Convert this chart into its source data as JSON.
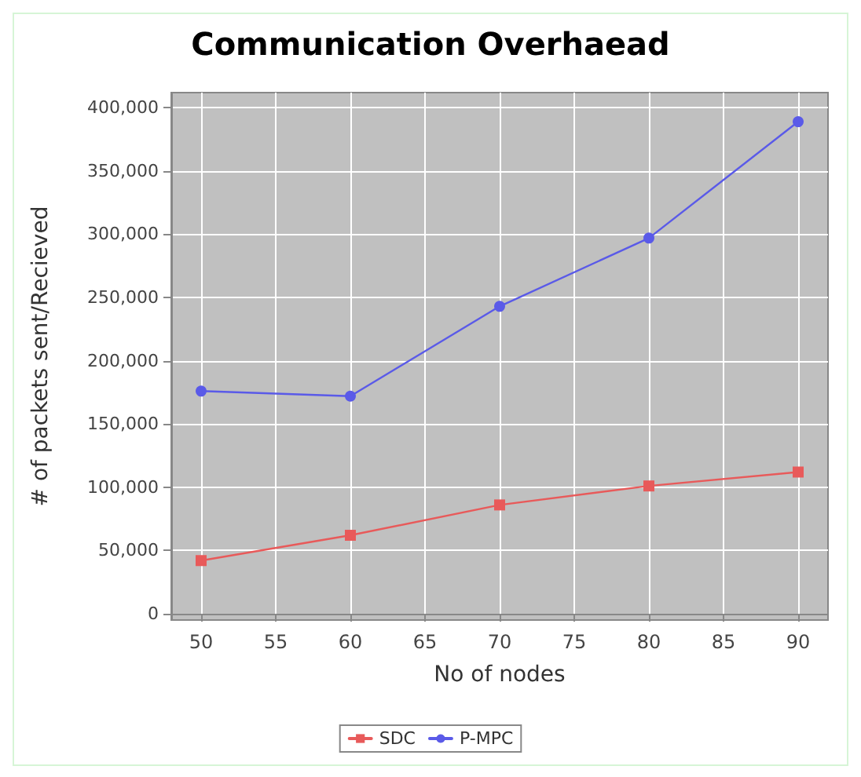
{
  "chart_data": {
    "type": "line",
    "title": "Communication Overhaead",
    "xlabel": "No of nodes",
    "ylabel": "# of packets sent/Recieved",
    "x": [
      50,
      60,
      70,
      80,
      90
    ],
    "series": [
      {
        "name": "SDC",
        "color": "#e85a5a",
        "marker": "square",
        "values": [
          42000,
          62000,
          86000,
          101000,
          112000
        ]
      },
      {
        "name": "P-MPC",
        "color": "#5a5ae8",
        "marker": "circle",
        "values": [
          176000,
          172000,
          243000,
          297000,
          389000
        ]
      }
    ],
    "xlim": [
      48,
      92
    ],
    "xticks": [
      50,
      55,
      60,
      65,
      70,
      75,
      80,
      85,
      90
    ],
    "ylim": [
      -5000,
      412000
    ],
    "yticks": [
      0,
      {
        "value": 50000,
        "label": "50,000"
      },
      {
        "value": 100000,
        "label": "100,000"
      },
      {
        "value": 150000,
        "label": "150,000"
      },
      {
        "value": 200000,
        "label": "200,000"
      },
      {
        "value": 250000,
        "label": "250,000"
      },
      {
        "value": 300000,
        "label": "300,000"
      },
      {
        "value": 350000,
        "label": "350,000"
      },
      {
        "value": 400000,
        "label": "400,000"
      }
    ],
    "grid": true,
    "legend": "bottom",
    "line_style": "solid"
  }
}
